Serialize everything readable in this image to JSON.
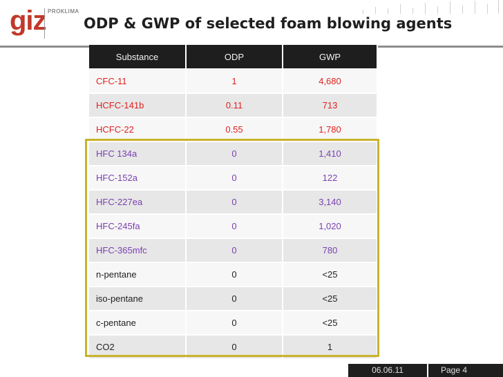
{
  "header": {
    "logo": "giz",
    "brand": "PROKLIMA",
    "title": "ODP & GWP of selected foam blowing agents"
  },
  "table": {
    "columns": [
      "Substance",
      "ODP",
      "GWP"
    ],
    "rows": [
      {
        "substance": "CFC-11",
        "odp": "1",
        "gwp": "4,680"
      },
      {
        "substance": "HCFC-141b",
        "odp": "0.11",
        "gwp": "713"
      },
      {
        "substance": "HCFC-22",
        "odp": "0.55",
        "gwp": "1,780"
      },
      {
        "substance": "HFC 134a",
        "odp": "0",
        "gwp": "1,410"
      },
      {
        "substance": "HFC-152a",
        "odp": "0",
        "gwp": "122"
      },
      {
        "substance": "HFC-227ea",
        "odp": "0",
        "gwp": "3,140"
      },
      {
        "substance": "HFC-245fa",
        "odp": "0",
        "gwp": "1,020"
      },
      {
        "substance": "HFC-365mfc",
        "odp": "0",
        "gwp": "780"
      },
      {
        "substance": "n-pentane",
        "odp": "0",
        "gwp": "<25"
      },
      {
        "substance": "iso-pentane",
        "odp": "0",
        "gwp": "<25"
      },
      {
        "substance": "c-pentane",
        "odp": "0",
        "gwp": "<25"
      },
      {
        "substance": "CO2",
        "odp": "0",
        "gwp": "1"
      }
    ]
  },
  "colors": {
    "cfc_hcfc": "#e02020",
    "hfc": "#7a3fb0",
    "natural": "#222222",
    "highlight_frame": "#c9b22d"
  },
  "footer": {
    "date": "06.06.11",
    "page": "Page 4"
  }
}
